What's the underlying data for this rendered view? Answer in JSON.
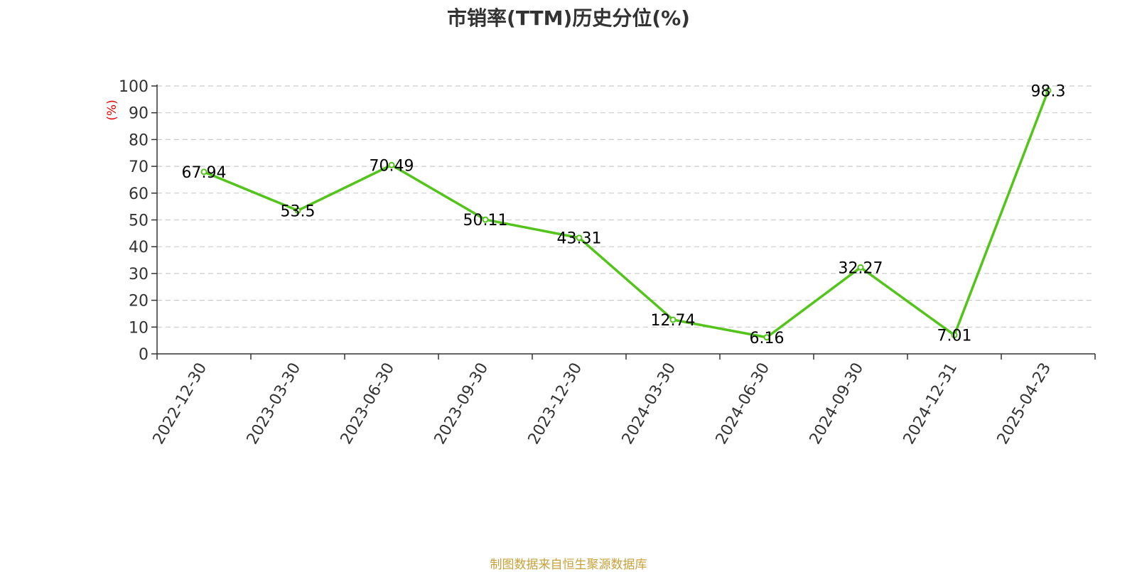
{
  "chart_data": {
    "type": "line",
    "title": "市销率(TTM)历史分位(%)",
    "ylabel": "(%)",
    "xlabel": "",
    "categories": [
      "2022-12-30",
      "2023-03-30",
      "2023-06-30",
      "2023-09-30",
      "2023-12-30",
      "2024-03-30",
      "2024-06-30",
      "2024-09-30",
      "2024-12-31",
      "2025-04-23"
    ],
    "series": [
      {
        "values": [
          67.94,
          53.5,
          70.49,
          50.11,
          43.31,
          12.74,
          6.16,
          32.27,
          7.01,
          98.3
        ],
        "labels": [
          "67.94",
          "53.5",
          "70.49",
          "50.11",
          "43.31",
          "12.74",
          "6.16",
          "32.27",
          "7.01",
          "98.3"
        ]
      }
    ],
    "ylim": [
      0,
      100
    ],
    "yticks": [
      "0",
      "10",
      "20",
      "30",
      "40",
      "50",
      "60",
      "70",
      "80",
      "90",
      "100"
    ],
    "grid": true,
    "colors": {
      "line": "#52c41a",
      "grid": "#cccccc",
      "axis": "#333333",
      "ylabel": "#e60000",
      "label": "#000000"
    }
  },
  "footer": {
    "source": "制图数据来自恒生聚源数据库"
  }
}
